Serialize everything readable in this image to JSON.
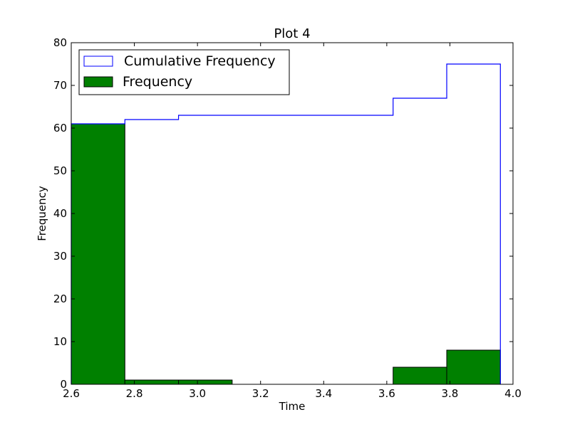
{
  "chart_data": {
    "type": "histogram",
    "title": "Plot 4",
    "xlabel": "Time",
    "ylabel": "Frequency",
    "xlim": [
      2.6,
      4.0
    ],
    "ylim": [
      0,
      80
    ],
    "x_ticks": [
      "2.6",
      "2.8",
      "3.0",
      "3.2",
      "3.4",
      "3.6",
      "3.8",
      "4.0"
    ],
    "y_ticks": [
      "0",
      "10",
      "20",
      "30",
      "40",
      "50",
      "60",
      "70",
      "80"
    ],
    "bin_edges": [
      2.6,
      2.77,
      2.94,
      3.11,
      3.28,
      3.45,
      3.62,
      3.79,
      3.96
    ],
    "series": [
      {
        "name": "Cumulative Frequency",
        "style": "step-outline",
        "color": "#0000ff",
        "values": [
          61,
          62,
          63,
          63,
          63,
          63,
          67,
          75
        ]
      },
      {
        "name": "Frequency",
        "style": "bars",
        "color": "#008000",
        "values": [
          61,
          1,
          1,
          0,
          0,
          0,
          4,
          8
        ]
      }
    ],
    "legend": {
      "position": "top-left",
      "entries": [
        "Cumulative Frequency",
        "Frequency"
      ]
    },
    "grid": false
  }
}
